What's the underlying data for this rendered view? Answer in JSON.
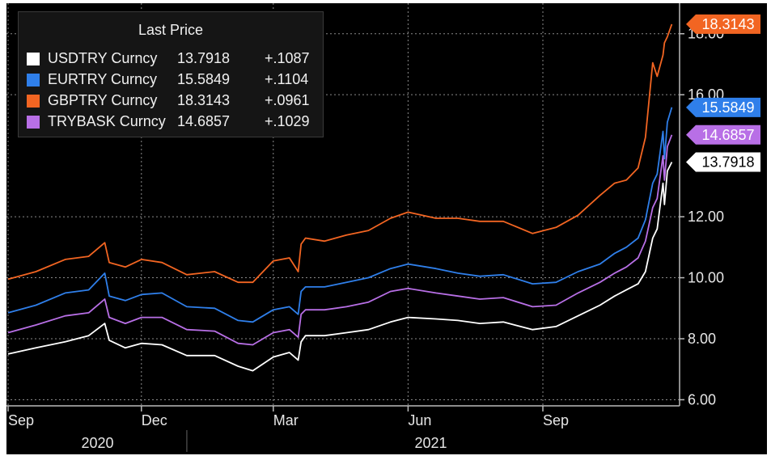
{
  "chart_data": {
    "type": "line",
    "title": "",
    "xlabel": "",
    "ylabel": "",
    "ylim": [
      5.8,
      19.0
    ],
    "y_ticks": [
      {
        "value": 6,
        "label": "6.00"
      },
      {
        "value": 8,
        "label": "8.00"
      },
      {
        "value": 10,
        "label": "10.00"
      },
      {
        "value": 12,
        "label": "12.00"
      },
      {
        "value": 16,
        "label": "16.00"
      },
      {
        "value": 18,
        "label": "18.00"
      }
    ],
    "x_range": [
      "2020-09-01",
      "2021-11-30"
    ],
    "x_ticks": [
      {
        "date": "2020-09-01",
        "label": "Sep"
      },
      {
        "date": "2020-12-01",
        "label": "Dec"
      },
      {
        "date": "2021-03-01",
        "label": "Mar"
      },
      {
        "date": "2021-06-01",
        "label": "Jun"
      },
      {
        "date": "2021-09-01",
        "label": "Sep"
      }
    ],
    "x_year_labels": [
      {
        "label": "2020",
        "from": "2020-09-01",
        "to": "2021-01-01"
      },
      {
        "label": "2021",
        "from": "2021-01-01",
        "to": "2021-11-30"
      }
    ],
    "grid": true,
    "legend": {
      "title": "Last Price",
      "placement": "top-left",
      "entries": [
        {
          "name": "USDTRY Curncy",
          "last": "13.7918",
          "change": "+.1087"
        },
        {
          "name": "EURTRY Curncy",
          "last": "15.5849",
          "change": "+.1104"
        },
        {
          "name": "GBPTRY Curncy",
          "last": "18.3143",
          "change": "+.0961"
        },
        {
          "name": "TRYBASK Curncy",
          "last": "14.6857",
          "change": "+.1029"
        }
      ]
    },
    "series": [
      {
        "name": "USDTRY Curncy",
        "color": "#ffffff",
        "last_label": "13.7918",
        "points": [
          [
            "2020-09-01",
            7.5
          ],
          [
            "2020-09-20",
            7.7
          ],
          [
            "2020-10-10",
            7.9
          ],
          [
            "2020-10-26",
            8.1
          ],
          [
            "2020-11-06",
            8.5
          ],
          [
            "2020-11-09",
            7.95
          ],
          [
            "2020-11-20",
            7.7
          ],
          [
            "2020-12-01",
            7.85
          ],
          [
            "2020-12-15",
            7.8
          ],
          [
            "2021-01-01",
            7.45
          ],
          [
            "2021-01-20",
            7.45
          ],
          [
            "2021-02-05",
            7.1
          ],
          [
            "2021-02-15",
            6.95
          ],
          [
            "2021-03-01",
            7.4
          ],
          [
            "2021-03-12",
            7.55
          ],
          [
            "2021-03-18",
            7.3
          ],
          [
            "2021-03-20",
            7.9
          ],
          [
            "2021-03-23",
            8.1
          ],
          [
            "2021-04-05",
            8.1
          ],
          [
            "2021-04-20",
            8.2
          ],
          [
            "2021-05-05",
            8.3
          ],
          [
            "2021-05-20",
            8.55
          ],
          [
            "2021-06-01",
            8.7
          ],
          [
            "2021-06-20",
            8.65
          ],
          [
            "2021-07-05",
            8.6
          ],
          [
            "2021-07-20",
            8.5
          ],
          [
            "2021-08-05",
            8.55
          ],
          [
            "2021-08-25",
            8.3
          ],
          [
            "2021-09-10",
            8.4
          ],
          [
            "2021-09-25",
            8.75
          ],
          [
            "2021-10-10",
            9.1
          ],
          [
            "2021-10-20",
            9.4
          ],
          [
            "2021-10-28",
            9.6
          ],
          [
            "2021-11-05",
            9.8
          ],
          [
            "2021-11-10",
            10.2
          ],
          [
            "2021-11-15",
            11.3
          ],
          [
            "2021-11-18",
            11.6
          ],
          [
            "2021-11-22",
            13.1
          ],
          [
            "2021-11-23",
            12.4
          ],
          [
            "2021-11-25",
            13.5
          ],
          [
            "2021-11-28",
            13.7918
          ]
        ]
      },
      {
        "name": "EURTRY Curncy",
        "color": "#2f7fea",
        "last_label": "15.5849",
        "points": [
          [
            "2020-09-01",
            8.85
          ],
          [
            "2020-09-20",
            9.1
          ],
          [
            "2020-10-10",
            9.5
          ],
          [
            "2020-10-26",
            9.6
          ],
          [
            "2020-11-06",
            10.15
          ],
          [
            "2020-11-09",
            9.4
          ],
          [
            "2020-11-20",
            9.25
          ],
          [
            "2020-12-01",
            9.45
          ],
          [
            "2020-12-15",
            9.5
          ],
          [
            "2021-01-01",
            9.05
          ],
          [
            "2021-01-20",
            9.0
          ],
          [
            "2021-02-05",
            8.6
          ],
          [
            "2021-02-15",
            8.55
          ],
          [
            "2021-03-01",
            8.95
          ],
          [
            "2021-03-12",
            9.05
          ],
          [
            "2021-03-18",
            8.8
          ],
          [
            "2021-03-20",
            9.55
          ],
          [
            "2021-03-23",
            9.7
          ],
          [
            "2021-04-05",
            9.7
          ],
          [
            "2021-04-20",
            9.85
          ],
          [
            "2021-05-05",
            10.0
          ],
          [
            "2021-05-20",
            10.3
          ],
          [
            "2021-06-01",
            10.45
          ],
          [
            "2021-06-20",
            10.3
          ],
          [
            "2021-07-05",
            10.15
          ],
          [
            "2021-07-20",
            10.05
          ],
          [
            "2021-08-05",
            10.1
          ],
          [
            "2021-08-25",
            9.8
          ],
          [
            "2021-09-10",
            9.85
          ],
          [
            "2021-09-25",
            10.2
          ],
          [
            "2021-10-10",
            10.45
          ],
          [
            "2021-10-20",
            10.8
          ],
          [
            "2021-10-28",
            11.0
          ],
          [
            "2021-11-05",
            11.3
          ],
          [
            "2021-11-10",
            11.9
          ],
          [
            "2021-11-15",
            13.1
          ],
          [
            "2021-11-18",
            13.4
          ],
          [
            "2021-11-22",
            14.8
          ],
          [
            "2021-11-23",
            13.9
          ],
          [
            "2021-11-25",
            15.1
          ],
          [
            "2021-11-28",
            15.5849
          ]
        ]
      },
      {
        "name": "GBPTRY Curncy",
        "color": "#f26522",
        "last_label": "18.3143",
        "points": [
          [
            "2020-09-01",
            9.95
          ],
          [
            "2020-09-20",
            10.2
          ],
          [
            "2020-10-10",
            10.6
          ],
          [
            "2020-10-26",
            10.7
          ],
          [
            "2020-11-06",
            11.15
          ],
          [
            "2020-11-09",
            10.5
          ],
          [
            "2020-11-20",
            10.35
          ],
          [
            "2020-12-01",
            10.6
          ],
          [
            "2020-12-15",
            10.5
          ],
          [
            "2021-01-01",
            10.1
          ],
          [
            "2021-01-20",
            10.2
          ],
          [
            "2021-02-05",
            9.85
          ],
          [
            "2021-02-15",
            9.85
          ],
          [
            "2021-03-01",
            10.55
          ],
          [
            "2021-03-12",
            10.65
          ],
          [
            "2021-03-18",
            10.2
          ],
          [
            "2021-03-20",
            11.1
          ],
          [
            "2021-03-23",
            11.3
          ],
          [
            "2021-04-05",
            11.2
          ],
          [
            "2021-04-20",
            11.4
          ],
          [
            "2021-05-05",
            11.55
          ],
          [
            "2021-05-20",
            11.95
          ],
          [
            "2021-06-01",
            12.15
          ],
          [
            "2021-06-20",
            11.95
          ],
          [
            "2021-07-05",
            11.95
          ],
          [
            "2021-07-20",
            11.85
          ],
          [
            "2021-08-05",
            11.85
          ],
          [
            "2021-08-25",
            11.45
          ],
          [
            "2021-09-10",
            11.65
          ],
          [
            "2021-09-25",
            12.05
          ],
          [
            "2021-10-10",
            12.7
          ],
          [
            "2021-10-20",
            13.1
          ],
          [
            "2021-10-28",
            13.2
          ],
          [
            "2021-11-05",
            13.6
          ],
          [
            "2021-11-10",
            14.6
          ],
          [
            "2021-11-15",
            17.05
          ],
          [
            "2021-11-18",
            16.6
          ],
          [
            "2021-11-22",
            17.3
          ],
          [
            "2021-11-23",
            17.7
          ],
          [
            "2021-11-25",
            17.9
          ],
          [
            "2021-11-28",
            18.3143
          ]
        ]
      },
      {
        "name": "TRYBASK Curncy",
        "color": "#b86fe6",
        "last_label": "14.6857",
        "points": [
          [
            "2020-09-01",
            8.2
          ],
          [
            "2020-09-20",
            8.45
          ],
          [
            "2020-10-10",
            8.75
          ],
          [
            "2020-10-26",
            8.85
          ],
          [
            "2020-11-06",
            9.3
          ],
          [
            "2020-11-09",
            8.7
          ],
          [
            "2020-11-20",
            8.5
          ],
          [
            "2020-12-01",
            8.7
          ],
          [
            "2020-12-15",
            8.7
          ],
          [
            "2021-01-01",
            8.3
          ],
          [
            "2021-01-20",
            8.25
          ],
          [
            "2021-02-05",
            7.85
          ],
          [
            "2021-02-15",
            7.8
          ],
          [
            "2021-03-01",
            8.2
          ],
          [
            "2021-03-12",
            8.3
          ],
          [
            "2021-03-18",
            8.05
          ],
          [
            "2021-03-20",
            8.8
          ],
          [
            "2021-03-23",
            8.95
          ],
          [
            "2021-04-05",
            8.95
          ],
          [
            "2021-04-20",
            9.05
          ],
          [
            "2021-05-05",
            9.2
          ],
          [
            "2021-05-20",
            9.55
          ],
          [
            "2021-06-01",
            9.65
          ],
          [
            "2021-06-20",
            9.5
          ],
          [
            "2021-07-05",
            9.4
          ],
          [
            "2021-07-20",
            9.3
          ],
          [
            "2021-08-05",
            9.35
          ],
          [
            "2021-08-25",
            9.05
          ],
          [
            "2021-09-10",
            9.1
          ],
          [
            "2021-09-25",
            9.5
          ],
          [
            "2021-10-10",
            9.85
          ],
          [
            "2021-10-20",
            10.15
          ],
          [
            "2021-10-28",
            10.35
          ],
          [
            "2021-11-05",
            10.65
          ],
          [
            "2021-11-10",
            11.2
          ],
          [
            "2021-11-15",
            12.3
          ],
          [
            "2021-11-18",
            12.6
          ],
          [
            "2021-11-22",
            14.0
          ],
          [
            "2021-11-23",
            13.2
          ],
          [
            "2021-11-25",
            14.3
          ],
          [
            "2021-11-28",
            14.6857
          ]
        ]
      }
    ]
  }
}
